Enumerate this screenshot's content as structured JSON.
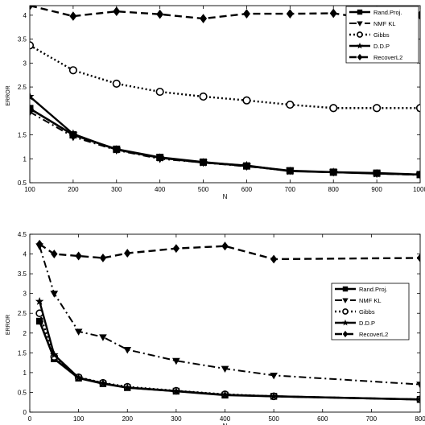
{
  "chart_data": [
    {
      "type": "line",
      "xlabel": "N",
      "ylabel": "ERROR",
      "xlim": [
        100,
        1000
      ],
      "ylim": [
        0.5,
        4.2
      ],
      "xticks": [
        100,
        200,
        300,
        400,
        500,
        600,
        700,
        800,
        900,
        1000
      ],
      "yticks": [
        0.5,
        1,
        1.5,
        2,
        2.5,
        3,
        3.5,
        4
      ],
      "ytick_labels": [
        "0.5",
        "1",
        "1.5",
        "",
        "2.5",
        "3",
        "3.5",
        "4"
      ],
      "grid": false,
      "legend_position": "top-right",
      "series": [
        {
          "name": "Rand.Proj.",
          "marker": "square",
          "dash": "solid",
          "width": 2.6,
          "x": [
            100,
            200,
            300,
            400,
            500,
            600,
            700,
            800,
            900,
            1000
          ],
          "y": [
            2.05,
            1.5,
            1.2,
            1.03,
            0.93,
            0.85,
            0.75,
            0.72,
            0.7,
            0.67
          ]
        },
        {
          "name": "NMF KL",
          "marker": "triangle-down",
          "dash": "dashdot",
          "width": 2.0,
          "x": [
            100,
            200,
            300,
            400,
            500,
            600,
            700,
            800,
            900,
            1000
          ],
          "y": [
            1.98,
            1.46,
            1.18,
            1.0,
            0.92,
            0.84,
            0.75,
            0.72,
            0.69,
            0.66
          ]
        },
        {
          "name": "Gibbs",
          "marker": "circle-open",
          "dash": "dotted",
          "width": 2.4,
          "x": [
            100,
            200,
            300,
            400,
            500,
            600,
            700,
            800,
            900,
            1000
          ],
          "y": [
            3.37,
            2.85,
            2.57,
            2.4,
            2.3,
            2.22,
            2.13,
            2.06,
            2.06,
            2.06
          ]
        },
        {
          "name": "D.D.P",
          "marker": "star",
          "dash": "solid",
          "width": 2.4,
          "x": [
            100,
            200,
            300,
            400,
            500,
            600,
            700,
            800,
            900,
            1000
          ],
          "y": [
            2.3,
            1.52,
            1.19,
            1.02,
            0.92,
            0.86,
            0.74,
            0.72,
            0.69,
            0.67
          ]
        },
        {
          "name": "RecoverL2",
          "marker": "diamond",
          "dash": "dashed",
          "width": 2.4,
          "x": [
            100,
            200,
            300,
            400,
            500,
            600,
            700,
            800,
            900,
            1000
          ],
          "y": [
            4.2,
            3.98,
            4.08,
            4.02,
            3.93,
            4.03,
            4.03,
            4.04,
            3.9,
            4.0
          ]
        }
      ]
    },
    {
      "type": "line",
      "xlabel": "N",
      "ylabel": "ERROR",
      "xlim": [
        0,
        800
      ],
      "ylim": [
        0,
        4.5
      ],
      "xticks": [
        0,
        100,
        200,
        300,
        400,
        500,
        600,
        700,
        800
      ],
      "yticks": [
        0,
        0.5,
        1,
        1.5,
        2,
        2.5,
        3,
        3.5,
        4,
        4.5
      ],
      "ytick_labels": [
        "0",
        "0.5",
        "1",
        "1.5",
        "2",
        "2.5",
        "3",
        "3.5",
        "4",
        "4.5"
      ],
      "grid": false,
      "legend_position": "center-right",
      "series": [
        {
          "name": "Rand.Proj.",
          "marker": "square",
          "dash": "solid",
          "width": 2.6,
          "x": [
            20,
            50,
            100,
            150,
            200,
            300,
            400,
            500,
            800
          ],
          "y": [
            2.3,
            1.35,
            0.86,
            0.72,
            0.62,
            0.53,
            0.43,
            0.4,
            0.32
          ]
        },
        {
          "name": "NMF KL",
          "marker": "triangle-down",
          "dash": "dashdot",
          "width": 2.0,
          "x": [
            20,
            50,
            100,
            150,
            200,
            300,
            400,
            500,
            800
          ],
          "y": [
            4.2,
            3.0,
            2.04,
            1.9,
            1.58,
            1.3,
            1.1,
            0.93,
            0.7
          ]
        },
        {
          "name": "Gibbs",
          "marker": "circle-open",
          "dash": "dotted",
          "width": 2.4,
          "x": [
            20,
            50,
            100,
            150,
            200,
            300,
            400,
            500,
            800
          ],
          "y": [
            2.5,
            1.4,
            0.88,
            0.74,
            0.64,
            0.54,
            0.45,
            0.4,
            0.32
          ]
        },
        {
          "name": "D.D.P",
          "marker": "star",
          "dash": "solid",
          "width": 2.4,
          "x": [
            20,
            50,
            100,
            150,
            200,
            300,
            400,
            500,
            800
          ],
          "y": [
            2.8,
            1.45,
            0.87,
            0.73,
            0.62,
            0.53,
            0.44,
            0.4,
            0.32
          ]
        },
        {
          "name": "RecoverL2",
          "marker": "diamond",
          "dash": "dashed",
          "width": 2.4,
          "x": [
            20,
            50,
            100,
            150,
            200,
            300,
            400,
            500,
            800
          ],
          "y": [
            4.25,
            4.0,
            3.95,
            3.9,
            4.02,
            4.14,
            4.2,
            3.87,
            3.9
          ]
        }
      ]
    }
  ]
}
